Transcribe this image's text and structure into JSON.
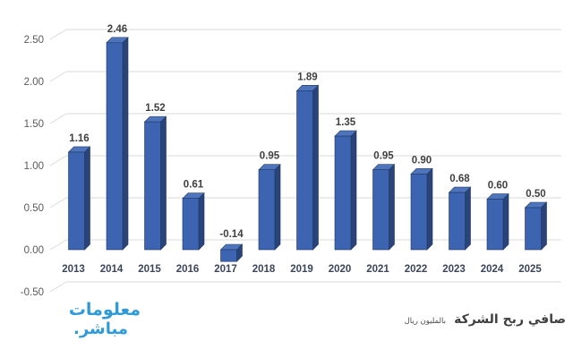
{
  "chart_data": {
    "type": "bar",
    "style": "3d-column",
    "title": "صافي ربح الشركة",
    "subtitle": "بالمليون ريال",
    "categories": [
      "2013",
      "2014",
      "2015",
      "2016",
      "2017",
      "2018",
      "2019",
      "2020",
      "2021",
      "2022",
      "2023",
      "2024",
      "2025"
    ],
    "values": [
      1.16,
      2.46,
      1.52,
      0.61,
      -0.14,
      0.95,
      1.89,
      1.35,
      0.95,
      0.9,
      0.68,
      0.6,
      0.5
    ],
    "value_labels": [
      "1.16",
      "2.46",
      "1.52",
      "0.61",
      "-0.14",
      "0.95",
      "1.89",
      "1.35",
      "0.95",
      "0.90",
      "0.68",
      "0.60",
      "0.50"
    ],
    "xlabel": "",
    "ylabel": "",
    "ylim": [
      -0.5,
      2.5
    ],
    "y_ticks": [
      2.5,
      2.0,
      1.5,
      1.0,
      0.5,
      0.0,
      -0.5
    ],
    "y_tick_labels": [
      "2.50",
      "2.00",
      "1.50",
      "1.00",
      "0.50",
      "0.00",
      "-0.50"
    ],
    "grid": true,
    "legend": false,
    "colors": {
      "bar_front": "#3C64B0",
      "bar_side": "#2A4378",
      "bar_top": "#4E75BC",
      "bar_outline": "#1F3864",
      "gridline": "#D9D9D9",
      "value_label": "#3F3F3F",
      "axis_tick_label": "#595959",
      "category_label": "#3A4559"
    }
  },
  "watermark": {
    "line1": "معلومات",
    "line2": "مباشر.",
    "color": "#2E9BD8"
  }
}
